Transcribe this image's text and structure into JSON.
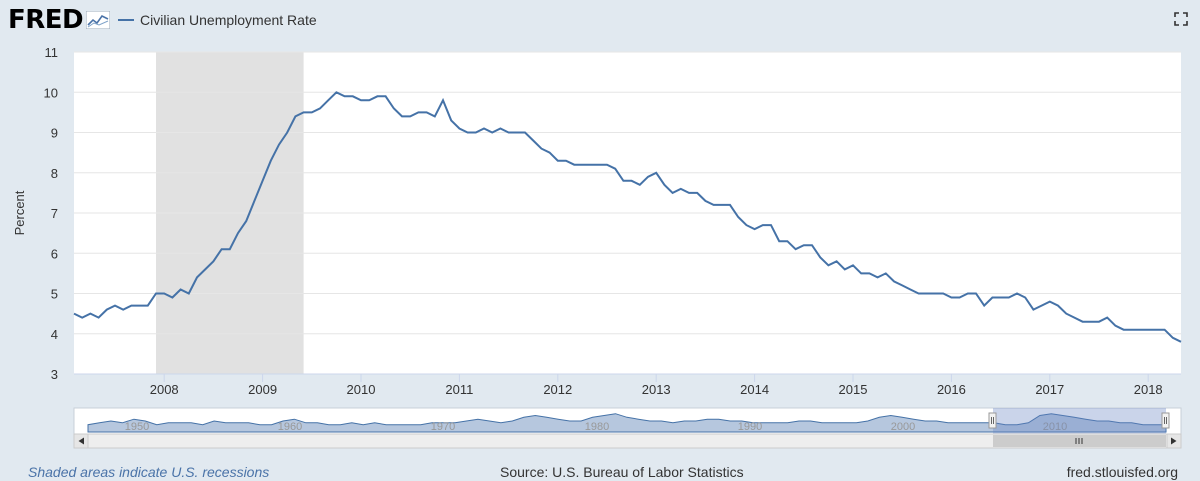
{
  "header": {
    "logo_text": "FRED",
    "series_legend": "Civilian Unemployment Rate"
  },
  "footer": {
    "recession_note": "Shaded areas indicate U.S. recessions",
    "source": "Source: U.S. Bureau of Labor Statistics",
    "site": "fred.stlouisfed.org"
  },
  "colors": {
    "line": "#4572a7",
    "recession_shade": "#e1e1e1",
    "background": "#e1e9f0",
    "plot_bg": "#ffffff"
  },
  "icons": {
    "expand": "expand-icon",
    "logo_graph": "fred-graph-icon"
  },
  "chart_data": {
    "type": "line",
    "title": "",
    "xlabel": "",
    "ylabel": "Percent",
    "ylim": [
      3,
      11
    ],
    "yticks": [
      3,
      4,
      5,
      6,
      7,
      8,
      9,
      10,
      11
    ],
    "xlim": [
      "2007-02",
      "2018-05"
    ],
    "xticks": [
      "2008",
      "2009",
      "2010",
      "2011",
      "2012",
      "2013",
      "2014",
      "2015",
      "2016",
      "2017",
      "2018"
    ],
    "grid": "horizontal",
    "recessions": [
      {
        "start": "2007-12",
        "end": "2009-06"
      }
    ],
    "series": [
      {
        "name": "Civilian Unemployment Rate",
        "start": "2007-02",
        "frequency": "monthly",
        "values": [
          4.5,
          4.4,
          4.5,
          4.4,
          4.6,
          4.7,
          4.6,
          4.7,
          4.7,
          4.7,
          5.0,
          5.0,
          4.9,
          5.1,
          5.0,
          5.4,
          5.6,
          5.8,
          6.1,
          6.1,
          6.5,
          6.8,
          7.3,
          7.8,
          8.3,
          8.7,
          9.0,
          9.4,
          9.5,
          9.5,
          9.6,
          9.8,
          10.0,
          9.9,
          9.9,
          9.8,
          9.8,
          9.9,
          9.9,
          9.6,
          9.4,
          9.4,
          9.5,
          9.5,
          9.4,
          9.8,
          9.3,
          9.1,
          9.0,
          9.0,
          9.1,
          9.0,
          9.1,
          9.0,
          9.0,
          9.0,
          8.8,
          8.6,
          8.5,
          8.3,
          8.3,
          8.2,
          8.2,
          8.2,
          8.2,
          8.2,
          8.1,
          7.8,
          7.8,
          7.7,
          7.9,
          8.0,
          7.7,
          7.5,
          7.6,
          7.5,
          7.5,
          7.3,
          7.2,
          7.2,
          7.2,
          6.9,
          6.7,
          6.6,
          6.7,
          6.7,
          6.3,
          6.3,
          6.1,
          6.2,
          6.2,
          5.9,
          5.7,
          5.8,
          5.6,
          5.7,
          5.5,
          5.5,
          5.4,
          5.5,
          5.3,
          5.2,
          5.1,
          5.0,
          5.0,
          5.0,
          5.0,
          4.9,
          4.9,
          5.0,
          5.0,
          4.7,
          4.9,
          4.9,
          4.9,
          5.0,
          4.9,
          4.6,
          4.7,
          4.8,
          4.7,
          4.5,
          4.4,
          4.3,
          4.3,
          4.3,
          4.4,
          4.2,
          4.1,
          4.1,
          4.1,
          4.1,
          4.1,
          4.1,
          3.9,
          3.8
        ]
      }
    ],
    "navigator": {
      "tick_labels": [
        "1950",
        "1960",
        "1970",
        "1980",
        "1990",
        "2000",
        "2010"
      ]
    }
  }
}
